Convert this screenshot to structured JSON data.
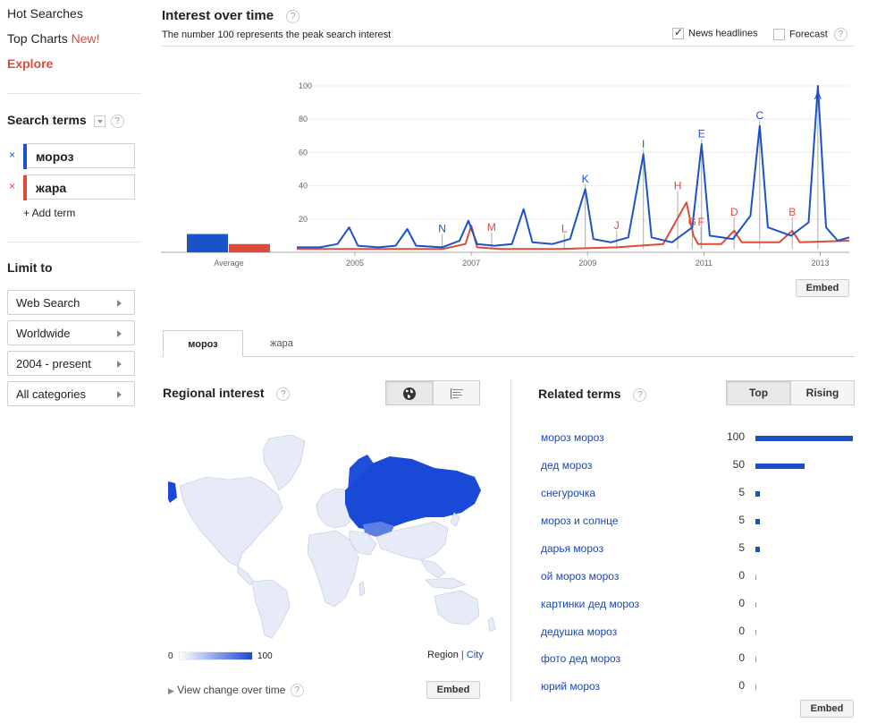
{
  "sidebar": {
    "hot_searches": "Hot Searches",
    "top_charts": "Top Charts",
    "top_charts_badge": "New!",
    "explore": "Explore",
    "search_terms_heading": "Search terms",
    "terms": [
      {
        "label": "мороз",
        "remove": "×",
        "color": "#1a53c7"
      },
      {
        "label": "жара",
        "remove": "×",
        "color": "#dd4b39"
      }
    ],
    "add_term": "+ Add term",
    "limit_heading": "Limit to",
    "limits": [
      "Web Search",
      "Worldwide",
      "2004 - present",
      "All categories"
    ]
  },
  "interest": {
    "title": "Interest over time",
    "help": "?",
    "subtitle": "The number 100 represents the peak search interest",
    "news_headlines": "News headlines",
    "news_headlines_checked": true,
    "forecast": "Forecast",
    "forecast_checked": false,
    "average_label": "Average",
    "embed": "Embed"
  },
  "chart_data": {
    "type": "line",
    "x_ticks": [
      "2005",
      "2007",
      "2009",
      "2011",
      "2013"
    ],
    "y_ticks": [
      "100",
      "80",
      "60",
      "40",
      "20"
    ],
    "ylim": [
      0,
      100
    ],
    "xlim": [
      2004.0,
      2013.5
    ],
    "series": [
      {
        "color": "#1a53c7",
        "average": 11,
        "points": [
          [
            2004.0,
            3
          ],
          [
            2004.4,
            3
          ],
          [
            2004.7,
            5
          ],
          [
            2004.9,
            15
          ],
          [
            2005.05,
            4
          ],
          [
            2005.4,
            3
          ],
          [
            2005.7,
            4
          ],
          [
            2005.9,
            14
          ],
          [
            2006.05,
            4
          ],
          [
            2006.5,
            3
          ],
          [
            2006.8,
            7
          ],
          [
            2006.95,
            19
          ],
          [
            2007.1,
            5
          ],
          [
            2007.4,
            4
          ],
          [
            2007.7,
            5
          ],
          [
            2007.9,
            26
          ],
          [
            2008.05,
            6
          ],
          [
            2008.4,
            5
          ],
          [
            2008.7,
            8
          ],
          [
            2008.96,
            38
          ],
          [
            2009.1,
            8
          ],
          [
            2009.4,
            6
          ],
          [
            2009.7,
            9
          ],
          [
            2009.96,
            59
          ],
          [
            2010.1,
            9
          ],
          [
            2010.45,
            6
          ],
          [
            2010.8,
            15
          ],
          [
            2010.96,
            65
          ],
          [
            2011.1,
            10
          ],
          [
            2011.5,
            8
          ],
          [
            2011.8,
            22
          ],
          [
            2011.96,
            76
          ],
          [
            2012.1,
            15
          ],
          [
            2012.5,
            10
          ],
          [
            2012.8,
            18
          ],
          [
            2012.96,
            100
          ],
          [
            2013.1,
            15
          ],
          [
            2013.3,
            7
          ],
          [
            2013.5,
            9
          ]
        ]
      },
      {
        "color": "#dd4b39",
        "average": 5,
        "points": [
          [
            2004.0,
            2
          ],
          [
            2006.5,
            2
          ],
          [
            2006.9,
            5
          ],
          [
            2007.0,
            16
          ],
          [
            2007.1,
            3
          ],
          [
            2007.5,
            2
          ],
          [
            2008.5,
            2
          ],
          [
            2009.5,
            3
          ],
          [
            2010.3,
            5
          ],
          [
            2010.7,
            30
          ],
          [
            2010.82,
            10
          ],
          [
            2010.9,
            5
          ],
          [
            2011.3,
            5
          ],
          [
            2011.52,
            13
          ],
          [
            2011.65,
            6
          ],
          [
            2012.3,
            6
          ],
          [
            2012.52,
            13
          ],
          [
            2012.65,
            6
          ],
          [
            2013.5,
            7
          ]
        ]
      }
    ],
    "markers": [
      {
        "label": "N",
        "x": 2006.5,
        "y": 12,
        "color": "#1a53c7"
      },
      {
        "label": "M",
        "x": 2007.35,
        "y": 13,
        "color": "#dd4b39"
      },
      {
        "label": "L",
        "x": 2008.6,
        "y": 12,
        "color": "#dd4b39"
      },
      {
        "label": "K",
        "x": 2008.96,
        "y": 42,
        "color": "#1a53c7"
      },
      {
        "label": "J",
        "x": 2009.5,
        "y": 14,
        "color": "#dd4b39"
      },
      {
        "label": "I",
        "x": 2009.96,
        "y": 63,
        "color": "#1a53c7"
      },
      {
        "label": "H",
        "x": 2010.55,
        "y": 38,
        "color": "#dd4b39"
      },
      {
        "label": "G",
        "x": 2010.8,
        "y": 16,
        "color": "#dd4b39"
      },
      {
        "label": "F",
        "x": 2010.95,
        "y": 16,
        "color": "#dd4b39"
      },
      {
        "label": "E",
        "x": 2010.96,
        "y": 69,
        "color": "#1a53c7"
      },
      {
        "label": "D",
        "x": 2011.52,
        "y": 22,
        "color": "#dd4b39"
      },
      {
        "label": "C",
        "x": 2011.96,
        "y": 80,
        "color": "#1a53c7"
      },
      {
        "label": "B",
        "x": 2012.52,
        "y": 22,
        "color": "#dd4b39"
      },
      {
        "label": "A",
        "x": 2012.96,
        "y": 92,
        "color": "#1a53c7"
      }
    ]
  },
  "tabs": [
    {
      "label": "мороз",
      "active": true
    },
    {
      "label": "жара",
      "active": false
    }
  ],
  "regional": {
    "title": "Regional interest",
    "help": "?",
    "legend_min": "0",
    "legend_max": "100",
    "region_label": "Region",
    "city_label": "City",
    "view_change": "View change over time",
    "embed": "Embed",
    "map_view_icon": "globe-icon",
    "list_view_icon": "list-icon"
  },
  "related": {
    "title": "Related terms",
    "help": "?",
    "top_label": "Top",
    "rising_label": "Rising",
    "embed": "Embed",
    "items": [
      {
        "term": "мороз мороз",
        "value": "100",
        "level": 100
      },
      {
        "term": "дед мороз",
        "value": "50",
        "level": 50
      },
      {
        "term": "снегурочка",
        "value": "5",
        "level": 5
      },
      {
        "term": "мороз и солнце",
        "value": "5",
        "level": 5
      },
      {
        "term": "дарья мороз",
        "value": "5",
        "level": 5
      },
      {
        "term": "ой мороз мороз",
        "value": "0",
        "level": 0
      },
      {
        "term": "картинки дед мороз",
        "value": "0",
        "level": 0
      },
      {
        "term": "дедушка мороз",
        "value": "0",
        "level": 0
      },
      {
        "term": "фото дед мороз",
        "value": "0",
        "level": 0
      },
      {
        "term": "юрий мороз",
        "value": "0",
        "level": 0
      }
    ]
  }
}
